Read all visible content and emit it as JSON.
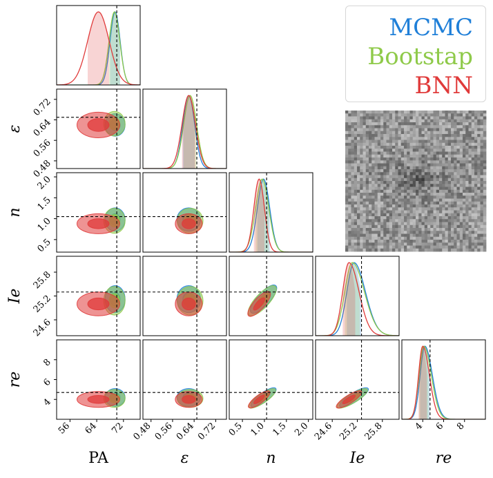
{
  "colors": {
    "mcmc": "#1f7fd8",
    "bootstrap": "#8fca4a",
    "bnn": "#e03a3a",
    "truth_line": "#000000"
  },
  "legend": {
    "mcmc_label": "MCMC",
    "bootstrap_label": "Bootstap",
    "bnn_label": "BNN"
  },
  "chart_data": {
    "type": "corner",
    "parameters": [
      "PA",
      "ε",
      "n",
      "Ie",
      "re"
    ],
    "axis_labels": {
      "PA": "PA",
      "eps": "ε",
      "n": "n",
      "Ie": "Ie",
      "re": "re"
    },
    "ranges": {
      "PA": [
        52,
        77
      ],
      "eps": [
        0.45,
        0.76
      ],
      "n": [
        0.2,
        2.1
      ],
      "Ie": [
        24.2,
        26.2
      ],
      "re": [
        2.0,
        10.0
      ]
    },
    "ticks": {
      "PA": [
        "56",
        "64",
        "72"
      ],
      "eps": [
        "0.48",
        "0.56",
        "0.64",
        "0.72"
      ],
      "n": [
        "0.5",
        "1.0",
        "1.5",
        "2.0"
      ],
      "Ie": [
        "24.6",
        "25.2",
        "25.8"
      ],
      "re": [
        "4",
        "6",
        "8"
      ]
    },
    "truth": {
      "PA": 70,
      "eps": 0.65,
      "n": 1.05,
      "Ie": 25.3,
      "re": 4.7
    },
    "series": [
      {
        "name": "MCMC",
        "mean": {
          "PA": 69.5,
          "eps": 0.62,
          "n": 0.98,
          "Ie": 25.12,
          "re": 4.2
        },
        "sd": {
          "PA": 1.5,
          "eps": 0.022,
          "n": 0.14,
          "Ie": 0.17,
          "re": 0.45
        }
      },
      {
        "name": "Bootstap",
        "mean": {
          "PA": 69.3,
          "eps": 0.625,
          "n": 0.95,
          "Ie": 25.08,
          "re": 4.1
        },
        "sd": {
          "PA": 1.6,
          "eps": 0.024,
          "n": 0.15,
          "Ie": 0.18,
          "re": 0.45
        }
      },
      {
        "name": "BNN",
        "mean": {
          "PA": 64.5,
          "eps": 0.62,
          "n": 0.88,
          "Ie": 25.0,
          "re": 4.0
        },
        "sd": {
          "PA": 3.2,
          "eps": 0.025,
          "n": 0.12,
          "Ie": 0.15,
          "re": 0.4
        }
      }
    ],
    "inset": "galaxy cutout image (noisy grayscale)"
  }
}
